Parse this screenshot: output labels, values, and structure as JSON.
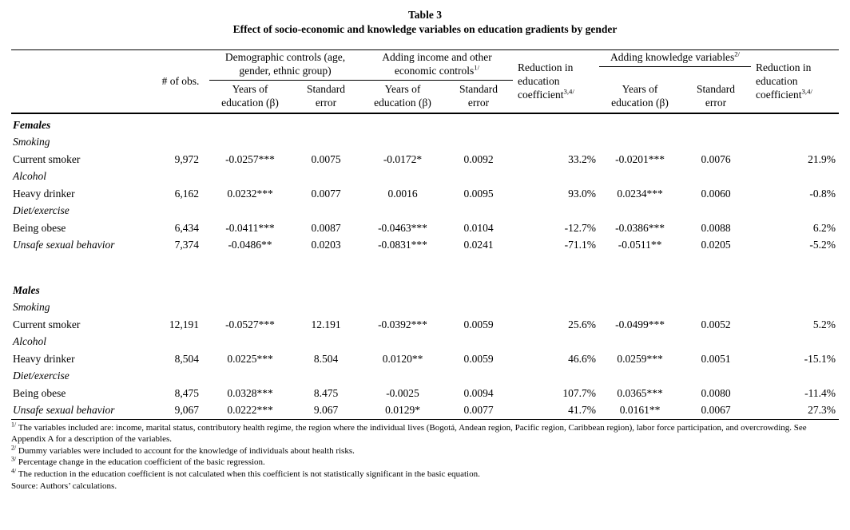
{
  "title": {
    "number": "Table 3",
    "text": "Effect of socio-economic and knowledge variables on education gradients by gender"
  },
  "header": {
    "obs": "# of obs.",
    "group1": {
      "label": "Demographic controls (age, gender, ethnic group)",
      "sup": ""
    },
    "group2": {
      "label": "Adding income and other economic controls",
      "sup": "1/"
    },
    "group3": {
      "label": "Adding knowledge variables",
      "sup": "2/"
    },
    "reduction_label": "Reduction in education coefficient",
    "reduction_sup": "3,4/",
    "sub_beta": "Years of education (β)",
    "sub_se": "Standard error"
  },
  "rows": [
    {
      "type": "section",
      "label": "Females"
    },
    {
      "type": "category",
      "label": "Smoking"
    },
    {
      "type": "data",
      "label": "Current smoker",
      "cells": [
        "9,972",
        "-0.0257***",
        "0.0075",
        "-0.0172*",
        "0.0092",
        "33.2%",
        "-0.0201***",
        "0.0076",
        "21.9%"
      ]
    },
    {
      "type": "category",
      "label": "Alcohol"
    },
    {
      "type": "data",
      "label": "Heavy drinker",
      "cells": [
        "6,162",
        "0.0232***",
        "0.0077",
        "0.0016",
        "0.0095",
        "93.0%",
        "0.0234***",
        "0.0060",
        "-0.8%"
      ]
    },
    {
      "type": "category",
      "label": "Diet/exercise"
    },
    {
      "type": "data",
      "label": "Being obese",
      "cells": [
        "6,434",
        "-0.0411***",
        "0.0087",
        "-0.0463***",
        "0.0104",
        "-12.7%",
        "-0.0386***",
        "0.0088",
        "6.2%"
      ]
    },
    {
      "type": "data",
      "label": "Unsafe sexual behavior",
      "italic": true,
      "cells": [
        "7,374",
        "-0.0486**",
        "0.0203",
        "-0.0831***",
        "0.0241",
        "-71.1%",
        "-0.0511**",
        "0.0205",
        "-5.2%"
      ]
    },
    {
      "type": "spacer"
    },
    {
      "type": "section",
      "label": "Males"
    },
    {
      "type": "category",
      "label": "Smoking"
    },
    {
      "type": "data",
      "label": "Current smoker",
      "cells": [
        "12,191",
        "-0.0527***",
        "12.191",
        "-0.0392***",
        "0.0059",
        "25.6%",
        "-0.0499***",
        "0.0052",
        "5.2%"
      ]
    },
    {
      "type": "category",
      "label": "Alcohol"
    },
    {
      "type": "data",
      "label": "Heavy drinker",
      "cells": [
        "8,504",
        "0.0225***",
        "8.504",
        "0.0120**",
        "0.0059",
        "46.6%",
        "0.0259***",
        "0.0051",
        "-15.1%"
      ]
    },
    {
      "type": "category",
      "label": "Diet/exercise"
    },
    {
      "type": "data",
      "label": "Being obese",
      "cells": [
        "8,475",
        "0.0328***",
        "8.475",
        "-0.0025",
        "0.0094",
        "107.7%",
        "0.0365***",
        "0.0080",
        "-11.4%"
      ]
    },
    {
      "type": "data",
      "label": "Unsafe sexual behavior",
      "italic": true,
      "cells": [
        "9,067",
        "0.0222***",
        "9.067",
        "0.0129*",
        "0.0077",
        "41.7%",
        "0.0161**",
        "0.0067",
        "27.3%"
      ]
    }
  ],
  "footnotes": [
    {
      "marker": "1/",
      "text": "The variables included are: income, marital status, contributory health regime, the region where the individual lives (Bogotá, Andean region, Pacific region, Caribbean region), labor force participation, and overcrowding. See Appendix A for a description of the variables."
    },
    {
      "marker": "2/",
      "text": "Dummy variables were included to account for the knowledge of individuals about health risks."
    },
    {
      "marker": "3/",
      "text": "Percentage change in the education coefficient of the basic regression."
    },
    {
      "marker": "4/",
      "text": "The reduction in the education coefficient is not calculated when this coefficient is not statistically significant in the basic equation."
    },
    {
      "marker": "",
      "text": "Source: Authors’ calculations."
    }
  ]
}
